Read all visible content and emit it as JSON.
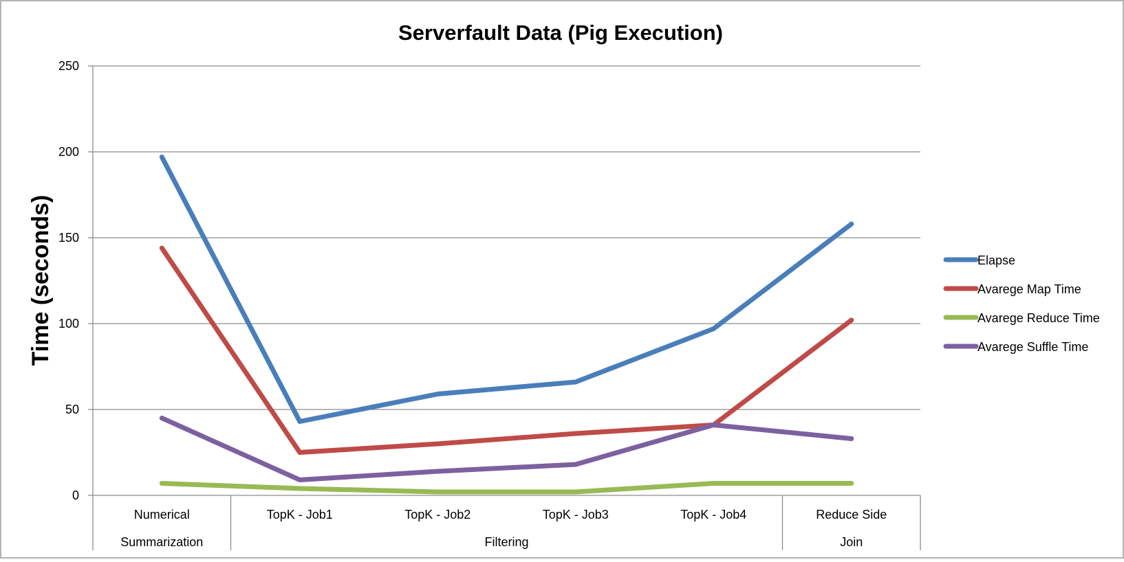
{
  "chart_data": {
    "type": "line",
    "title": "Serverfault Data (Pig Execution)",
    "xlabel": "",
    "ylabel": "Time (seconds)",
    "ylim": [
      0,
      250
    ],
    "yticks": [
      0,
      50,
      100,
      150,
      200,
      250
    ],
    "grid": "horizontal",
    "legend_position": "right",
    "categories": [
      "Numerical",
      "TopK - Job1",
      "TopK - Job2",
      "TopK - Job3",
      "TopK - Job4",
      "Reduce Side"
    ],
    "groups": [
      {
        "label": "Summarization",
        "span": [
          0,
          0
        ]
      },
      {
        "label": "Filtering",
        "span": [
          1,
          4
        ]
      },
      {
        "label": "Join",
        "span": [
          5,
          5
        ]
      }
    ],
    "series": [
      {
        "name": "Elapse",
        "color": "#4a7ebb",
        "values": [
          197,
          43,
          59,
          66,
          97,
          158
        ]
      },
      {
        "name": "Avarege Map Time",
        "color": "#be4b48",
        "values": [
          144,
          25,
          30,
          36,
          41,
          102
        ]
      },
      {
        "name": "Avarege Reduce Time",
        "color": "#98b954",
        "values": [
          7,
          4,
          2,
          2,
          7,
          7
        ]
      },
      {
        "name": "Avarege Suffle Time",
        "color": "#7d60a0",
        "values": [
          45,
          9,
          14,
          18,
          41,
          33
        ]
      }
    ]
  }
}
